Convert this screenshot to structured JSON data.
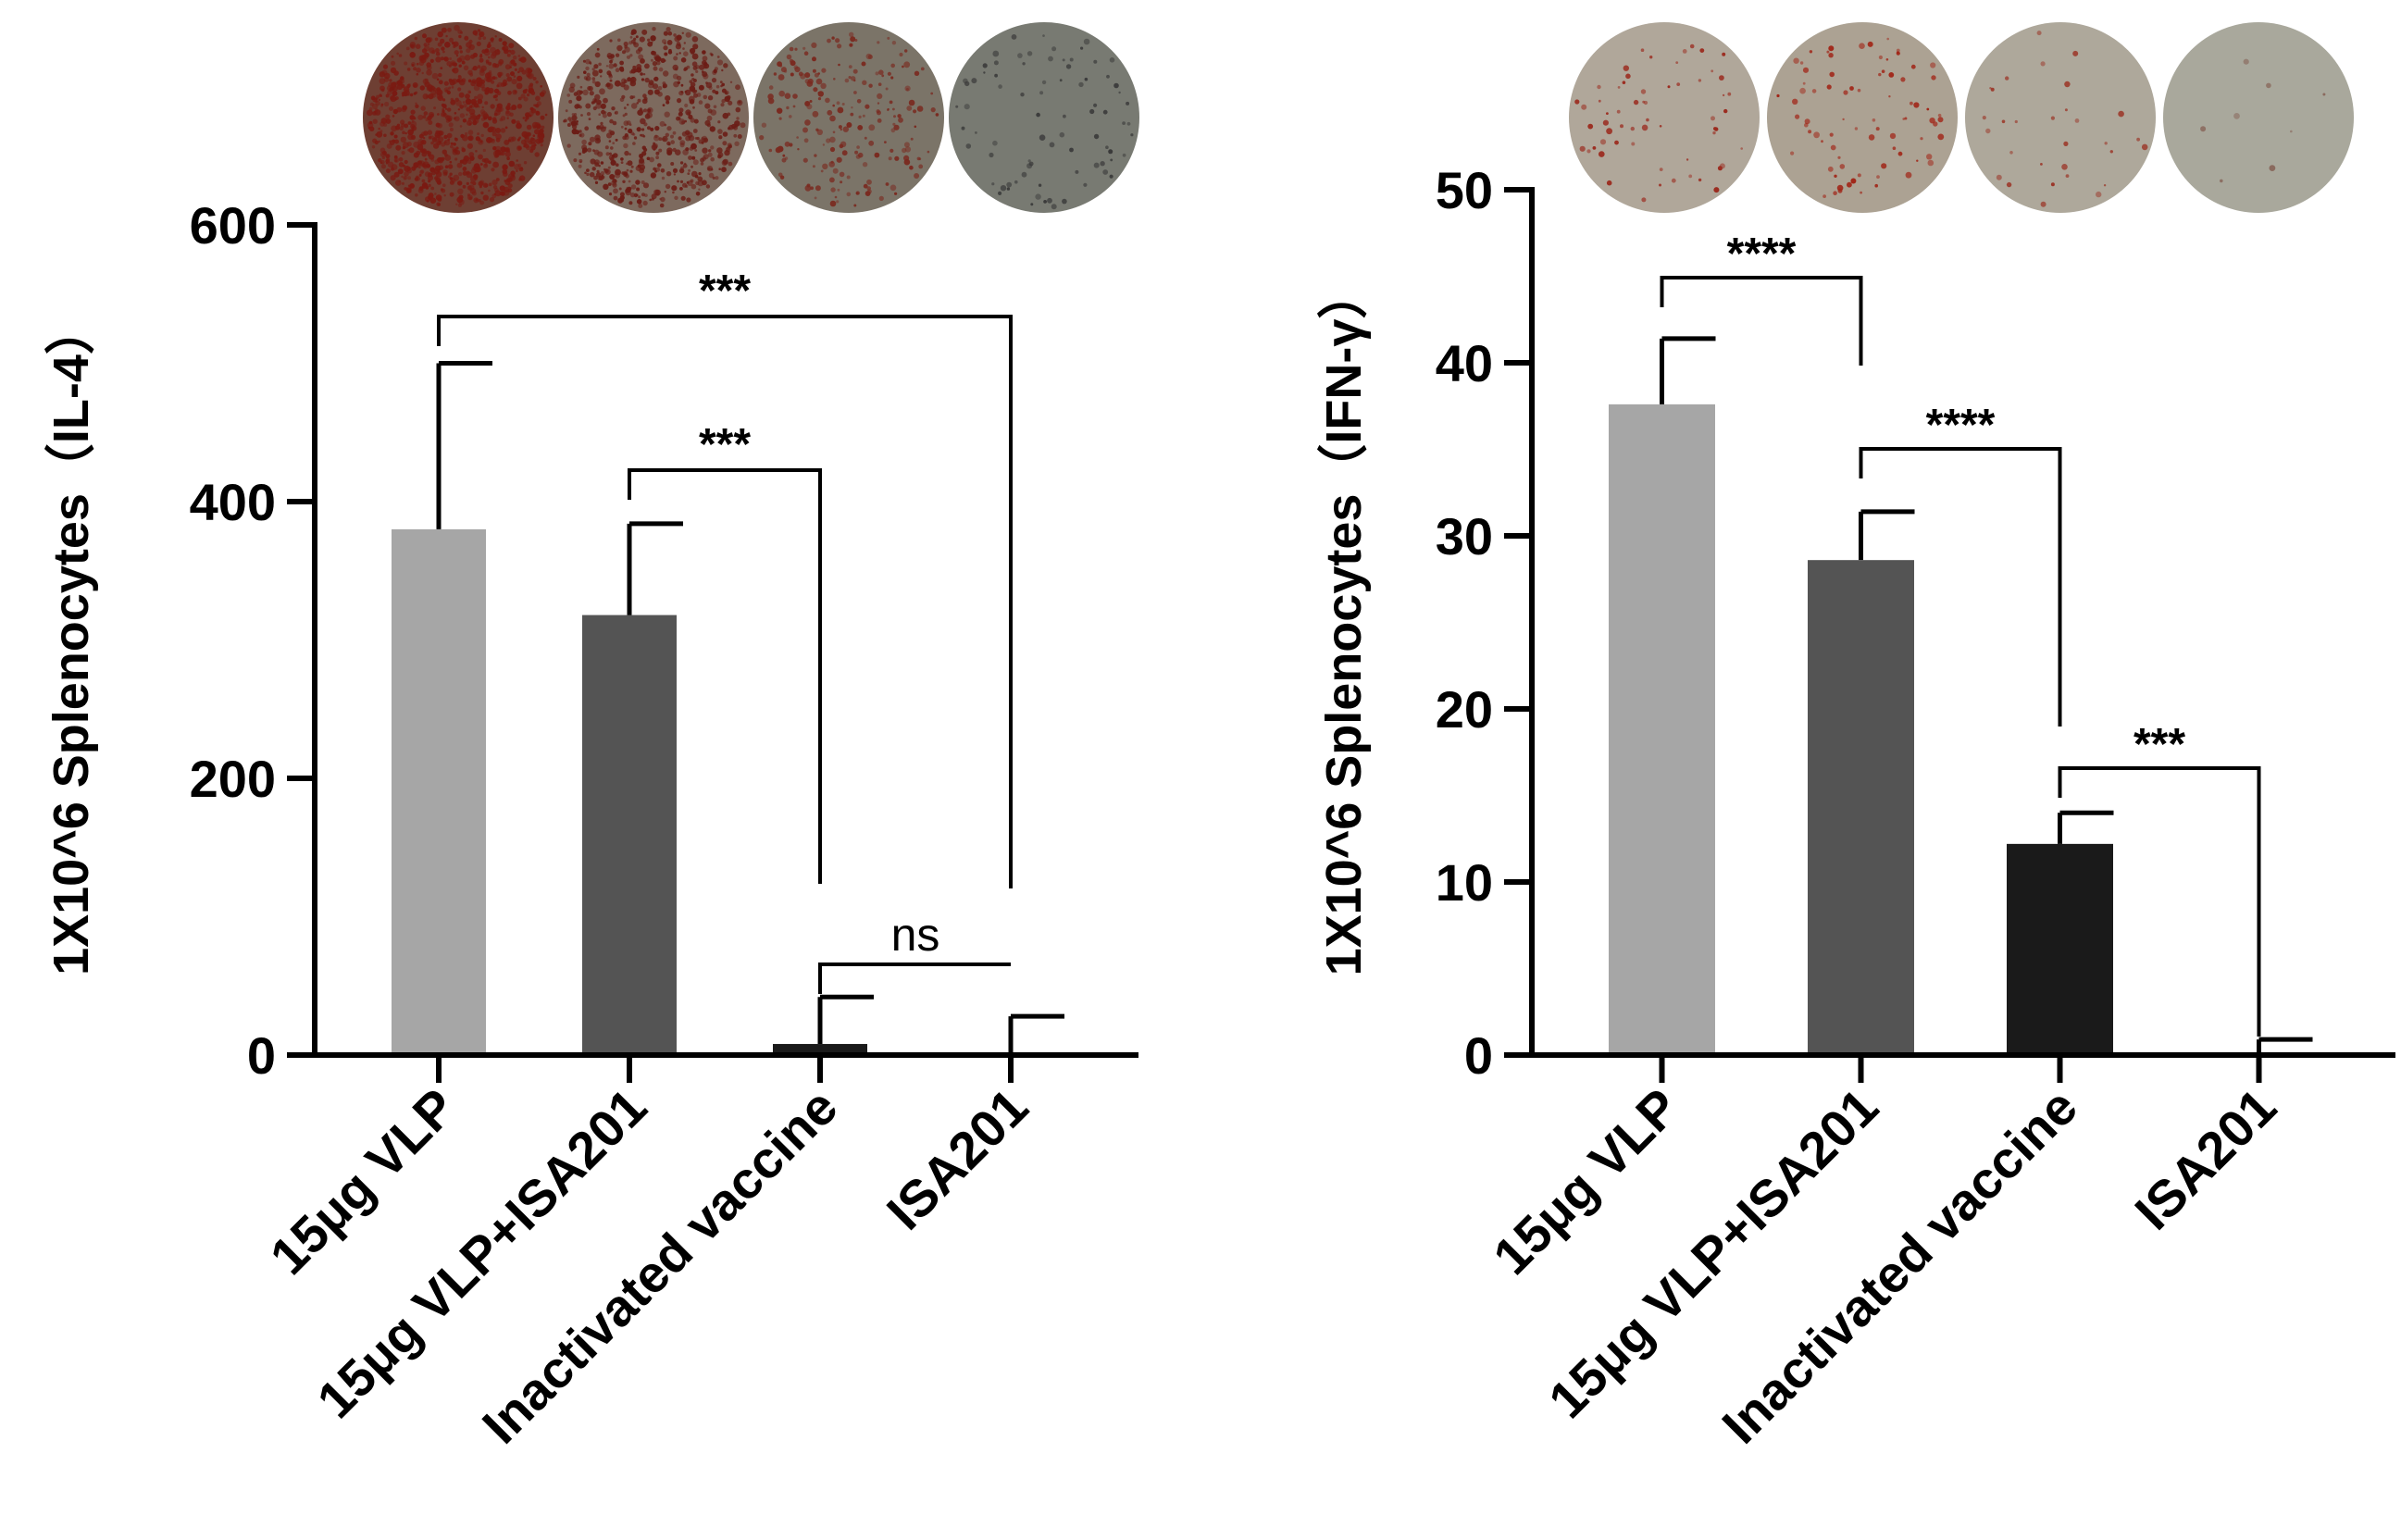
{
  "chart_data": [
    {
      "type": "bar",
      "ylabel": "1X10^6 Splenocytes（IL-4）",
      "categories": [
        "15μg VLP",
        "15μg VLP+ISA201",
        "Inactivated vaccine",
        "ISA201"
      ],
      "values": [
        380,
        318,
        8,
        0
      ],
      "errors": [
        120,
        66,
        34,
        28
      ],
      "colors": [
        "#a6a6a6",
        "#545454",
        "#1a1a1a",
        "#1a1a1a"
      ],
      "ylim": [
        0,
        600
      ],
      "yticks": [
        "0",
        "200",
        "400",
        "600"
      ],
      "significance": [
        {
          "from": 0,
          "to": 3,
          "label": "***"
        },
        {
          "from": 1,
          "to": 2,
          "label": "***"
        },
        {
          "from": 2,
          "to": 3,
          "label": "ns"
        }
      ],
      "wells": [
        {
          "bg": "#6e3f33",
          "spot": "#7a1a12",
          "density": 900
        },
        {
          "bg": "#7d6a5e",
          "spot": "#6b1d16",
          "density": 650
        },
        {
          "bg": "#7b7468",
          "spot": "#7a2a20",
          "density": 220
        },
        {
          "bg": "#787a72",
          "spot": "#3a3a3a",
          "density": 80
        }
      ]
    },
    {
      "type": "bar",
      "ylabel": "1X10^6 Splenocytes（IFN-γ）",
      "categories": [
        "15μg VLP",
        "15μg VLP+ISA201",
        "Inactivated vaccine",
        "ISA201"
      ],
      "values": [
        37.6,
        28.6,
        12.2,
        0
      ],
      "errors": [
        3.8,
        2.8,
        1.8,
        0.9
      ],
      "colors": [
        "#a6a6a6",
        "#545454",
        "#1a1a1a",
        "#1a1a1a"
      ],
      "ylim": [
        0,
        50
      ],
      "yticks": [
        "0",
        "10",
        "20",
        "30",
        "40",
        "50"
      ],
      "significance": [
        {
          "from": 0,
          "to": 1,
          "label": "****"
        },
        {
          "from": 1,
          "to": 2,
          "label": "****"
        },
        {
          "from": 2,
          "to": 3,
          "label": "***"
        }
      ],
      "wells": [
        {
          "bg": "#b0a79a",
          "spot": "#9b2a1e",
          "density": 60
        },
        {
          "bg": "#aca293",
          "spot": "#a12618",
          "density": 80
        },
        {
          "bg": "#aea89b",
          "spot": "#9b3527",
          "density": 30
        },
        {
          "bg": "#a9a89c",
          "spot": "#8a6a5e",
          "density": 8
        }
      ]
    }
  ]
}
